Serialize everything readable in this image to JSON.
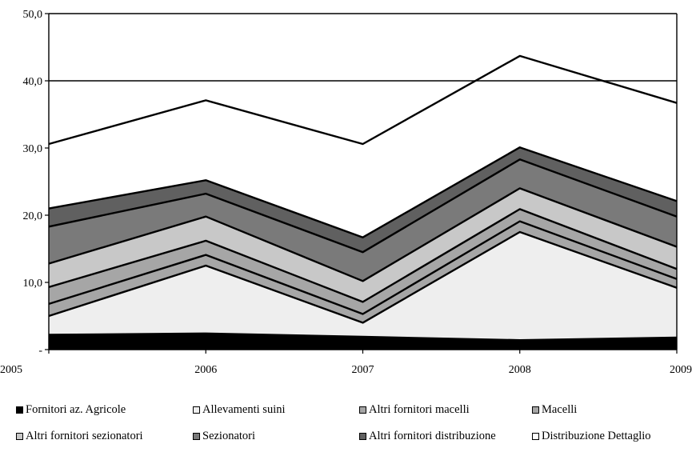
{
  "chart_data": {
    "type": "area",
    "stacked": true,
    "x": [
      "2005",
      "2006",
      "2007",
      "2008",
      "2009"
    ],
    "ylim": [
      0,
      50
    ],
    "yticks": [
      "-",
      "10,0",
      "20,0",
      "30,0",
      "40,0",
      "50,0"
    ],
    "gridlines": [
      40
    ],
    "legend_position": "bottom",
    "series": [
      {
        "name": "Fornitori az. Agricole",
        "color": "#000000",
        "values": [
          2.2,
          2.4,
          1.9,
          1.4,
          1.8
        ]
      },
      {
        "name": "Allevamenti suini",
        "color": "#eeeeee",
        "values": [
          2.8,
          10.1,
          2.1,
          16.1,
          7.4
        ]
      },
      {
        "name": "Altri fornitori macelli",
        "color": "#a6a6a6",
        "values": [
          1.8,
          1.6,
          1.3,
          1.6,
          1.3
        ]
      },
      {
        "name": "Macelli",
        "color": "#a6a6a6",
        "values": [
          2.5,
          2.1,
          1.8,
          1.8,
          1.5
        ]
      },
      {
        "name": "Altri fornitori sezionatori",
        "color": "#c8c8c8",
        "values": [
          3.5,
          3.6,
          3.1,
          3.1,
          3.3
        ]
      },
      {
        "name": "Sezionatori",
        "color": "#7a7a7a",
        "values": [
          5.5,
          3.4,
          4.3,
          4.3,
          4.5
        ]
      },
      {
        "name": "Altri fornitori distribuzione",
        "color": "#606060",
        "values": [
          2.7,
          2.0,
          2.2,
          1.8,
          2.3
        ]
      },
      {
        "name": "Distribuzione Dettaglio",
        "color": "#ffffff",
        "values": [
          9.6,
          11.9,
          13.9,
          13.6,
          14.6
        ]
      }
    ]
  }
}
